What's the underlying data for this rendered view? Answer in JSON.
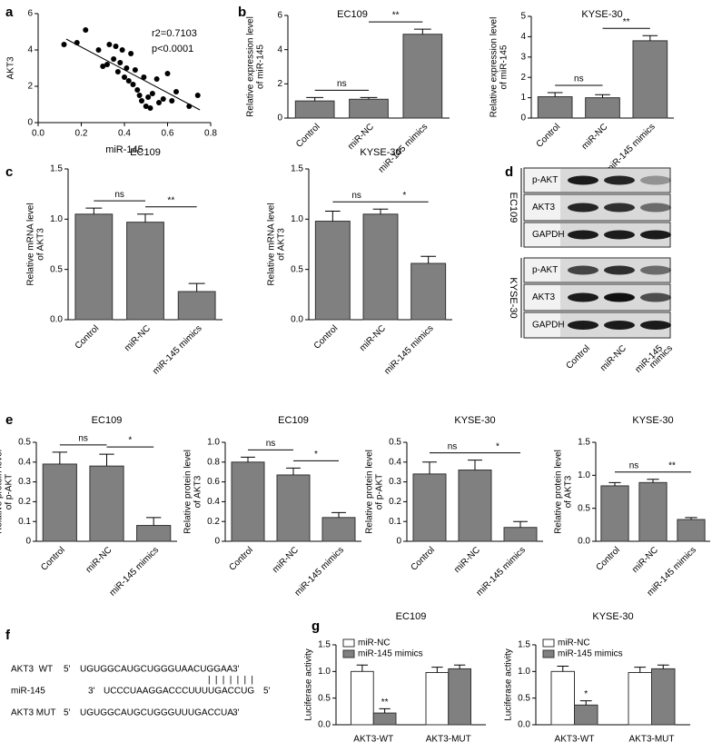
{
  "panel_labels": [
    "a",
    "b",
    "c",
    "d",
    "e",
    "f",
    "g"
  ],
  "chart_data": [
    {
      "type": "scatter",
      "xlabel": "miR-145",
      "ylabel": [
        "AKT3"
      ],
      "annotations": [
        "r2=0.7103",
        "p<0.0001"
      ],
      "x": [
        0.12,
        0.18,
        0.22,
        0.28,
        0.3,
        0.32,
        0.33,
        0.35,
        0.36,
        0.37,
        0.38,
        0.39,
        0.4,
        0.41,
        0.42,
        0.43,
        0.44,
        0.45,
        0.46,
        0.47,
        0.48,
        0.49,
        0.5,
        0.51,
        0.52,
        0.53,
        0.55,
        0.56,
        0.58,
        0.6,
        0.62,
        0.64,
        0.7,
        0.74
      ],
      "y": [
        4.3,
        4.4,
        5.1,
        4.0,
        3.1,
        3.2,
        4.3,
        3.5,
        4.2,
        2.8,
        3.3,
        4.0,
        2.5,
        3.0,
        2.3,
        3.8,
        2.1,
        2.9,
        1.8,
        1.5,
        1.2,
        2.5,
        0.9,
        1.4,
        0.8,
        1.6,
        2.4,
        1.1,
        1.3,
        2.7,
        1.2,
        1.7,
        0.9,
        1.5
      ],
      "fit_line": {
        "x": [
          0.13,
          0.75
        ],
        "y": [
          4.6,
          0.7
        ]
      },
      "xlim": [
        0,
        0.8
      ],
      "xticks": [
        {
          "value": 0,
          "label": "0.0"
        },
        0.2,
        0.4,
        0.6,
        0.8
      ],
      "ylim": [
        0,
        6
      ],
      "yticks": [
        0,
        2,
        4,
        6
      ],
      "color": "#000000"
    },
    {
      "type": "bar",
      "title": "EC109",
      "ylabel": [
        "Relative expression level",
        "of miR-145"
      ],
      "categories": [
        "Control",
        "miR-NC",
        "miR-145 mimics"
      ],
      "values": [
        1.0,
        1.1,
        4.9
      ],
      "errors": [
        0.2,
        0.1,
        0.3
      ],
      "ylim": [
        0,
        6
      ],
      "yticks": [
        0,
        2,
        4,
        6
      ],
      "annotations": [
        "ns",
        "**"
      ],
      "color": "#808080"
    },
    {
      "type": "bar",
      "title": "KYSE-30",
      "ylabel": [
        "Relative expression level",
        "of miR-145"
      ],
      "categories": [
        "Control",
        "miR-NC",
        "miR-145 mimics"
      ],
      "values": [
        1.05,
        1.0,
        3.8
      ],
      "errors": [
        0.2,
        0.15,
        0.25
      ],
      "ylim": [
        0,
        5
      ],
      "yticks": [
        0,
        1,
        2,
        3,
        4,
        5
      ],
      "annotations": [
        "ns",
        "**"
      ],
      "color": "#808080"
    },
    {
      "type": "bar",
      "title": "EC109",
      "ylabel": [
        "Relative mRNA level",
        "of AKT3"
      ],
      "categories": [
        "Control",
        "miR-NC",
        "miR-145 mimics"
      ],
      "values": [
        1.05,
        0.97,
        0.28
      ],
      "errors": [
        0.06,
        0.08,
        0.08
      ],
      "ylim": [
        0,
        1.5
      ],
      "yticks": [
        {
          "value": 0,
          "label": "0.0"
        },
        0.5,
        {
          "value": 1,
          "label": "1.0"
        },
        1.5
      ],
      "annotations": [
        "ns",
        "**"
      ],
      "color": "#808080"
    },
    {
      "type": "bar",
      "title": "KYSE-30",
      "ylabel": [
        "Relative mRNA level",
        "of AKT3"
      ],
      "categories": [
        "Control",
        "miR-NC",
        "miR-145 mimics"
      ],
      "values": [
        0.98,
        1.05,
        0.56
      ],
      "errors": [
        0.1,
        0.05,
        0.07
      ],
      "ylim": [
        0,
        1.5
      ],
      "yticks": [
        {
          "value": 0,
          "label": "0.0"
        },
        0.5,
        {
          "value": 1,
          "label": "1.0"
        },
        1.5
      ],
      "annotations": [
        "ns",
        "*"
      ],
      "color": "#808080"
    },
    {
      "type": "bar",
      "title": "EC109",
      "ylabel": [
        "Relative protein level",
        "of p-AKT"
      ],
      "categories": [
        "Control",
        "miR-NC",
        "miR-145 mimics"
      ],
      "values": [
        0.39,
        0.38,
        0.08
      ],
      "errors": [
        0.06,
        0.06,
        0.04
      ],
      "ylim": [
        0,
        0.5
      ],
      "yticks": [
        0,
        0.1,
        0.2,
        0.3,
        0.4,
        0.5
      ],
      "annotations": [
        "ns",
        "*"
      ],
      "color": "#808080"
    },
    {
      "type": "bar",
      "title": "EC109",
      "ylabel": [
        "Relative protein level",
        "of AKT3"
      ],
      "categories": [
        "Control",
        "miR-NC",
        "miR-145 mimics"
      ],
      "values": [
        0.8,
        0.67,
        0.24
      ],
      "errors": [
        0.05,
        0.07,
        0.05
      ],
      "ylim": [
        0,
        1
      ],
      "yticks": [
        0,
        0.2,
        0.4,
        0.6,
        0.8,
        {
          "value": 1,
          "label": "1.0"
        }
      ],
      "annotations": [
        "ns",
        "*"
      ],
      "color": "#808080"
    },
    {
      "type": "bar",
      "title": "KYSE-30",
      "ylabel": [
        "Relative protein level",
        "of p-AKT"
      ],
      "categories": [
        "Control",
        "miR-NC",
        "miR-145 mimics"
      ],
      "values": [
        0.34,
        0.36,
        0.07
      ],
      "errors": [
        0.06,
        0.05,
        0.03
      ],
      "ylim": [
        0,
        0.5
      ],
      "yticks": [
        0,
        0.1,
        0.2,
        0.3,
        0.4,
        0.5
      ],
      "annotations": [
        "ns",
        "*"
      ],
      "color": "#808080"
    },
    {
      "type": "bar",
      "title": "KYSE-30",
      "ylabel": [
        "Relative protein level",
        "of AKT3"
      ],
      "categories": [
        "Control",
        "miR-NC",
        "miR-145 mimics"
      ],
      "values": [
        0.84,
        0.89,
        0.33
      ],
      "errors": [
        0.05,
        0.05,
        0.03
      ],
      "ylim": [
        0,
        1.5
      ],
      "yticks": [
        {
          "value": 0,
          "label": "0.0"
        },
        0.5,
        {
          "value": 1,
          "label": "1.0"
        },
        1.5
      ],
      "annotations": [
        "ns",
        "**"
      ],
      "color": "#808080"
    },
    {
      "type": "grouped_bar",
      "title": "EC109",
      "ylabel": [
        "Luciferase activity"
      ],
      "categories": [
        "AKT3-WT",
        "AKT3-MUT"
      ],
      "series": [
        {
          "name": "miR-NC",
          "color": "#ffffff",
          "values": [
            1.0,
            0.98
          ],
          "errors": [
            0.12,
            0.1
          ]
        },
        {
          "name": "miR-145 mimics",
          "color": "#808080",
          "values": [
            0.22,
            1.05
          ],
          "errors": [
            0.08,
            0.07
          ]
        }
      ],
      "ylim": [
        0,
        1.5
      ],
      "yticks": [
        {
          "value": 0,
          "label": "0.0"
        },
        0.5,
        {
          "value": 1,
          "label": "1.0"
        },
        1.5
      ],
      "annotations": [
        "**"
      ]
    },
    {
      "type": "grouped_bar",
      "title": "KYSE-30",
      "ylabel": [
        "Luciferase activity"
      ],
      "categories": [
        "AKT3-WT",
        "AKT3-MUT"
      ],
      "series": [
        {
          "name": "miR-NC",
          "color": "#ffffff",
          "values": [
            1.0,
            0.98
          ],
          "errors": [
            0.1,
            0.1
          ]
        },
        {
          "name": "miR-145 mimics",
          "color": "#808080",
          "values": [
            0.37,
            1.05
          ],
          "errors": [
            0.08,
            0.07
          ]
        }
      ],
      "ylim": [
        0,
        1.5
      ],
      "yticks": [
        {
          "value": 0,
          "label": "0.0"
        },
        0.5,
        {
          "value": 1,
          "label": "1.0"
        },
        1.5
      ],
      "annotations": [
        "*"
      ]
    }
  ],
  "blot": {
    "groups": [
      {
        "name": "EC109",
        "rows": [
          "p-AKT",
          "AKT3",
          "GAPDH"
        ]
      },
      {
        "name": "KYSE-30",
        "rows": [
          "p-AKT",
          "AKT3",
          "GAPDH"
        ]
      }
    ],
    "lanes": [
      [
        "Control"
      ],
      [
        "miR-NC"
      ],
      [
        "miR-145",
        "mimics"
      ]
    ]
  },
  "sequence": {
    "rows": [
      {
        "name": "AKT3  WT",
        "left": "5'",
        "seq": [
          "UGUGGCAUGCUGGGUAACUGGAA"
        ],
        "right": "3'"
      },
      {
        "name": "miR-145",
        "left": "3'",
        "seq": [
          "UCCCUAAGGACCCUUUUGACCUG"
        ],
        "right": "5'"
      },
      {
        "name": "AKT3 MUT",
        "left": "5'",
        "seq": [
          "UGUGGCAUGCUGGGU",
          "UUGACCU",
          "A"
        ],
        "right": "3'"
      }
    ],
    "pairing": "|||||||",
    "highlight_color": "#e0201b"
  }
}
